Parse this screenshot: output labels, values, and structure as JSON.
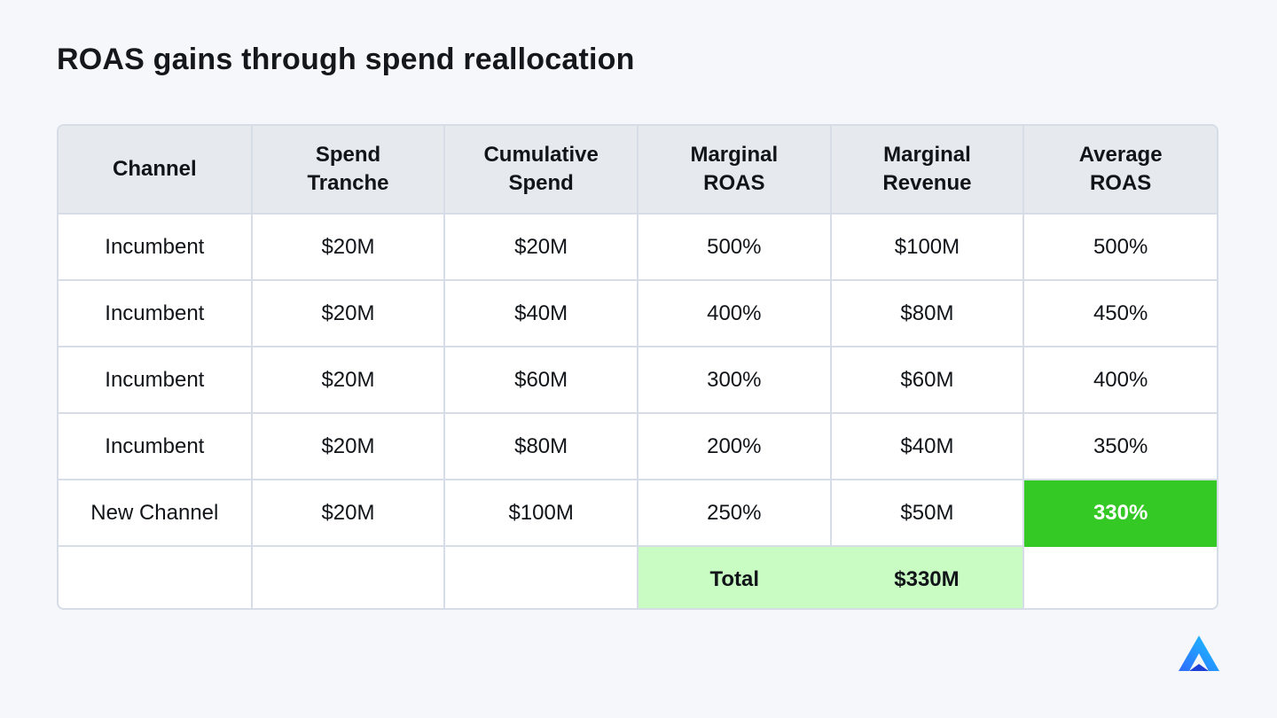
{
  "title": "ROAS gains through spend reallocation",
  "table": {
    "headers": [
      [
        "Channel"
      ],
      [
        "Spend",
        "Tranche"
      ],
      [
        "Cumulative",
        "Spend"
      ],
      [
        "Marginal",
        "ROAS"
      ],
      [
        "Marginal",
        "Revenue"
      ],
      [
        "Average",
        "ROAS"
      ]
    ],
    "rows": [
      [
        "Incumbent",
        "$20M",
        "$20M",
        "500%",
        "$100M",
        "500%"
      ],
      [
        "Incumbent",
        "$20M",
        "$40M",
        "400%",
        "$80M",
        "450%"
      ],
      [
        "Incumbent",
        "$20M",
        "$60M",
        "300%",
        "$60M",
        "400%"
      ],
      [
        "Incumbent",
        "$20M",
        "$80M",
        "200%",
        "$40M",
        "350%"
      ],
      [
        "New Channel",
        "$20M",
        "$100M",
        "250%",
        "$50M",
        "330%"
      ]
    ],
    "total": {
      "label": "Total",
      "value": "$330M"
    }
  },
  "colors": {
    "highlight": "#35c925",
    "total_fill": "#c8fcc3",
    "header_fill": "#e6e9ed",
    "border": "#d6dde6",
    "logo_gradient": [
      "#2f6bff",
      "#19c6ff"
    ]
  },
  "logo": {
    "icon": "brand-logo-icon"
  }
}
